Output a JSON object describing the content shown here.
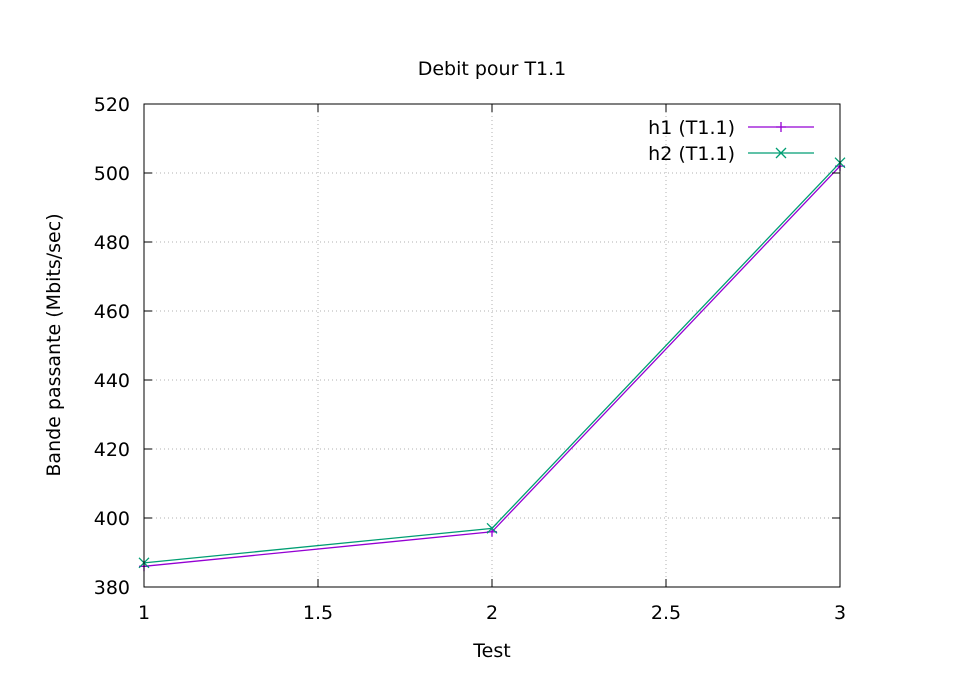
{
  "chart_data": {
    "type": "line",
    "title": "Debit pour T1.1",
    "xlabel": "Test",
    "ylabel": "Bande passante (Mbits/sec)",
    "xlim": [
      1,
      3
    ],
    "ylim": [
      380,
      520
    ],
    "xticks": [
      1,
      1.5,
      2,
      2.5,
      3
    ],
    "xtick_labels": [
      "1",
      "1.5",
      "2",
      "2.5",
      "3"
    ],
    "yticks": [
      380,
      400,
      420,
      440,
      460,
      480,
      500,
      520
    ],
    "ytick_labels": [
      "380",
      "400",
      "420",
      "440",
      "460",
      "480",
      "500",
      "520"
    ],
    "grid": true,
    "legend_position": "top-right",
    "series": [
      {
        "name": "h1 (T1.1)",
        "color": "#9400d3",
        "marker": "plus",
        "x": [
          1,
          2,
          3
        ],
        "y": [
          386,
          396,
          502
        ]
      },
      {
        "name": "h2 (T1.1)",
        "color": "#009e73",
        "marker": "cross",
        "x": [
          1,
          2,
          3
        ],
        "y": [
          387,
          397,
          503
        ]
      }
    ]
  }
}
